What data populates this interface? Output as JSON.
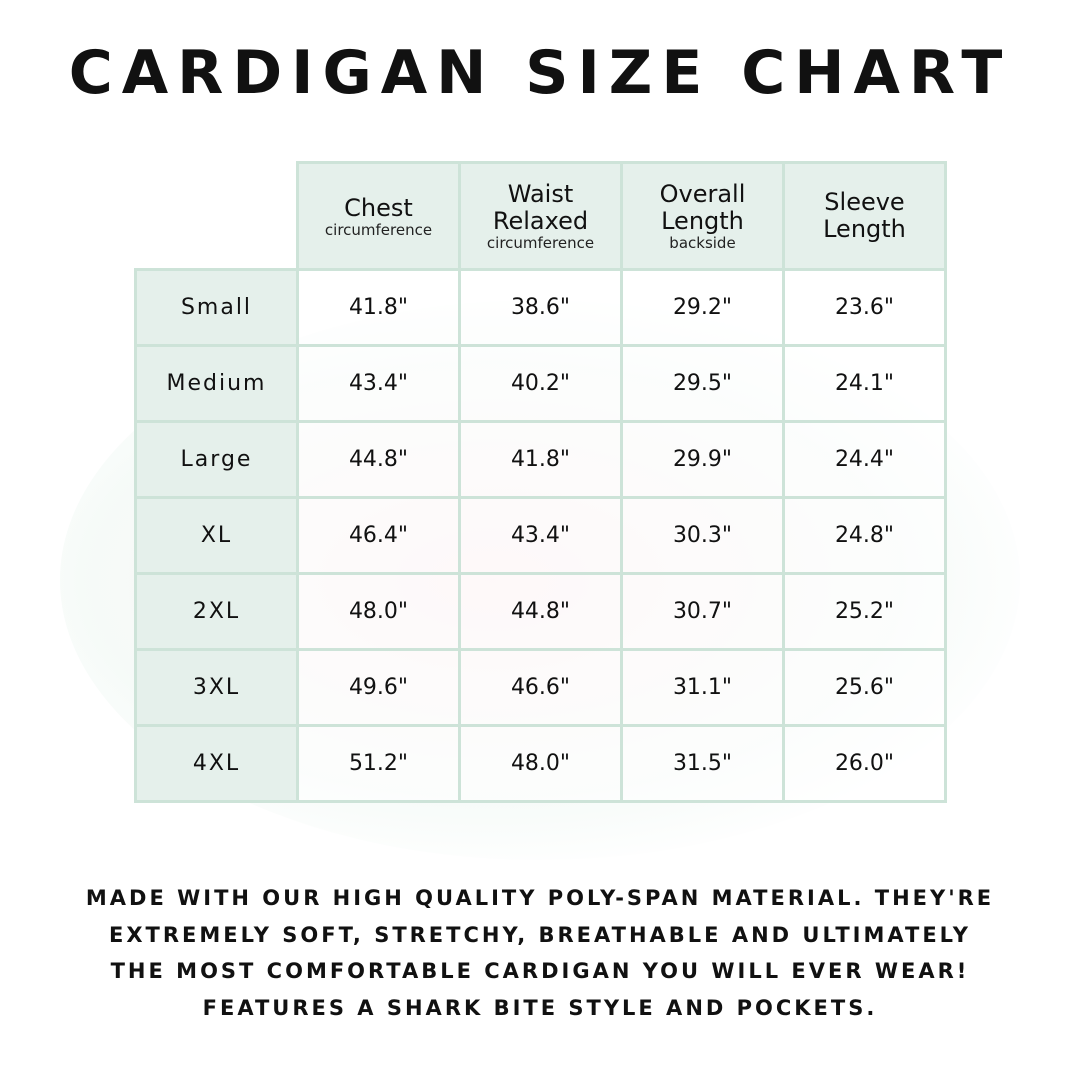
{
  "title": "CARDIGAN SIZE CHART",
  "table": {
    "headers": [
      {
        "label": "Chest",
        "sub": "circumference"
      },
      {
        "label": "Waist Relaxed",
        "sub": "circumference"
      },
      {
        "label": "Overall Length",
        "sub": "backside"
      },
      {
        "label": "Sleeve Length",
        "sub": ""
      }
    ],
    "rows": [
      {
        "size": "Small",
        "values": [
          "41.8\"",
          "38.6\"",
          "29.2\"",
          "23.6\""
        ]
      },
      {
        "size": "Medium",
        "values": [
          "43.4\"",
          "40.2\"",
          "29.5\"",
          "24.1\""
        ]
      },
      {
        "size": "Large",
        "values": [
          "44.8\"",
          "41.8\"",
          "29.9\"",
          "24.4\""
        ]
      },
      {
        "size": "XL",
        "values": [
          "46.4\"",
          "43.4\"",
          "30.3\"",
          "24.8\""
        ]
      },
      {
        "size": "2XL",
        "values": [
          "48.0\"",
          "44.8\"",
          "30.7\"",
          "25.2\""
        ]
      },
      {
        "size": "3XL",
        "values": [
          "49.6\"",
          "46.6\"",
          "31.1\"",
          "25.6\""
        ]
      },
      {
        "size": "4XL",
        "values": [
          "51.2\"",
          "48.0\"",
          "31.5\"",
          "26.0\""
        ]
      }
    ]
  },
  "footer": [
    "MADE WITH OUR HIGH QUALITY POLY-SPAN MATERIAL. THEY'RE",
    "EXTREMELY SOFT, STRETCHY, BREATHABLE AND ULTIMATELY",
    "THE MOST COMFORTABLE CARDIGAN YOU WILL EVER WEAR!",
    "FEATURES A SHARK BITE STYLE AND POCKETS."
  ],
  "colors": {
    "border": "#cde3d8",
    "header_bg": "#e5f0eb"
  }
}
